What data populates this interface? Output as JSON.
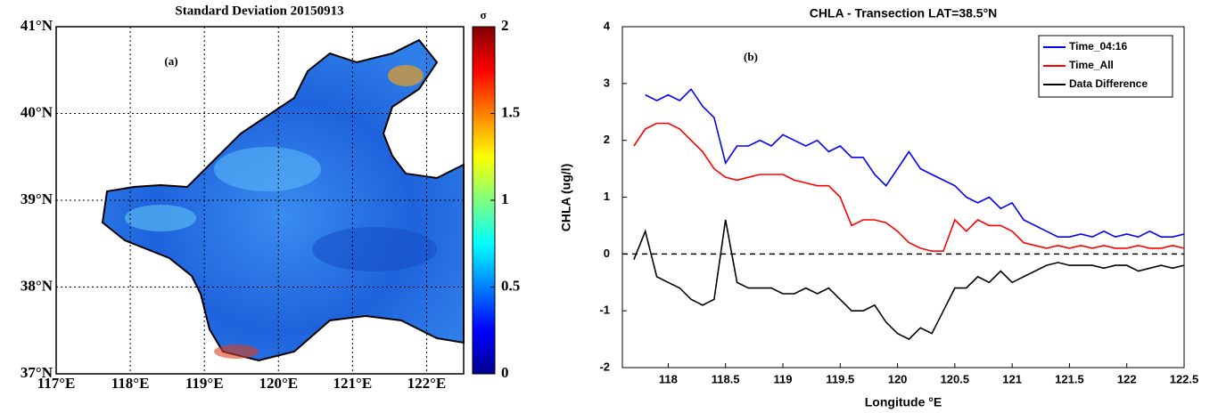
{
  "chart_data": [
    {
      "type": "map",
      "title": "Standard Deviation 20150913",
      "annotation": "(a)",
      "xlim": [
        117,
        122.5
      ],
      "ylim": [
        37,
        41
      ],
      "xticks": [
        {
          "value": 117,
          "label": "117°E"
        },
        {
          "value": 118,
          "label": "118°E"
        },
        {
          "value": 119,
          "label": "119°E"
        },
        {
          "value": 120,
          "label": "120°E"
        },
        {
          "value": 121,
          "label": "121°E"
        },
        {
          "value": 122,
          "label": "122°E"
        }
      ],
      "yticks": [
        {
          "value": 37,
          "label": "37°N"
        },
        {
          "value": 38,
          "label": "38°N"
        },
        {
          "value": 39,
          "label": "39°N"
        },
        {
          "value": 40,
          "label": "40°N"
        },
        {
          "value": 41,
          "label": "41°N"
        }
      ],
      "grid": true,
      "colorbar_label": "σ",
      "clim": [
        0,
        2
      ],
      "cticks": [
        0,
        0.5,
        1,
        1.5,
        2
      ]
    },
    {
      "type": "line",
      "title": "CHLA - Transection LAT=38.5°N",
      "annotation": "(b)",
      "x_label": "Longitude °E",
      "y_label": "CHLA (ug/l)",
      "x": [
        117.7,
        117.8,
        117.9,
        118.0,
        118.1,
        118.2,
        118.3,
        118.4,
        118.5,
        118.6,
        118.7,
        118.8,
        118.9,
        119.0,
        119.1,
        119.2,
        119.3,
        119.4,
        119.5,
        119.6,
        119.7,
        119.8,
        119.9,
        120.0,
        120.1,
        120.2,
        120.3,
        120.4,
        120.5,
        120.6,
        120.7,
        120.8,
        120.9,
        121.0,
        121.1,
        121.2,
        121.3,
        121.4,
        121.5,
        121.6,
        121.7,
        121.8,
        121.9,
        122.0,
        122.1,
        122.2,
        122.3,
        122.4,
        122.5
      ],
      "series": [
        {
          "name": "Time_04:16",
          "color": "#0000ff",
          "values": [
            null,
            2.8,
            2.7,
            2.8,
            2.7,
            2.9,
            2.6,
            2.4,
            1.6,
            1.9,
            1.9,
            2.0,
            1.9,
            2.1,
            2.0,
            1.9,
            2.0,
            1.8,
            1.9,
            1.7,
            1.7,
            1.4,
            1.2,
            1.5,
            1.8,
            1.5,
            1.4,
            1.3,
            1.2,
            1.0,
            0.9,
            1.0,
            0.8,
            0.9,
            0.6,
            0.5,
            0.4,
            0.3,
            0.3,
            0.35,
            0.3,
            0.4,
            0.3,
            0.35,
            0.3,
            0.4,
            0.3,
            0.3,
            0.35
          ]
        },
        {
          "name": "Time_All",
          "color": "#ff0000",
          "values": [
            1.9,
            2.2,
            2.3,
            2.3,
            2.2,
            2.0,
            1.8,
            1.5,
            1.35,
            1.3,
            1.35,
            1.4,
            1.4,
            1.4,
            1.3,
            1.25,
            1.2,
            1.2,
            1.0,
            0.5,
            0.6,
            0.6,
            0.55,
            0.4,
            0.2,
            0.1,
            0.05,
            0.05,
            0.6,
            0.4,
            0.6,
            0.5,
            0.5,
            0.4,
            0.2,
            0.15,
            0.1,
            0.15,
            0.1,
            0.15,
            0.1,
            0.15,
            0.1,
            0.1,
            0.15,
            0.1,
            0.1,
            0.15,
            0.1
          ]
        },
        {
          "name": "Data Difference",
          "color": "#000000",
          "values": [
            -0.1,
            0.4,
            -0.4,
            -0.5,
            -0.6,
            -0.8,
            -0.9,
            -0.8,
            0.6,
            -0.5,
            -0.6,
            -0.6,
            -0.6,
            -0.7,
            -0.7,
            -0.6,
            -0.7,
            -0.6,
            -0.8,
            -1.0,
            -1.0,
            -0.9,
            -1.2,
            -1.4,
            -1.5,
            -1.3,
            -1.4,
            -1.0,
            -0.6,
            -0.6,
            -0.4,
            -0.5,
            -0.3,
            -0.5,
            -0.4,
            -0.3,
            -0.2,
            -0.15,
            -0.2,
            -0.2,
            -0.2,
            -0.25,
            -0.2,
            -0.2,
            -0.3,
            -0.25,
            -0.2,
            -0.25,
            -0.2
          ]
        }
      ],
      "xlim": [
        117.6,
        122.5
      ],
      "ylim": [
        -2,
        4
      ],
      "xticks": [
        118,
        118.5,
        119,
        119.5,
        120,
        120.5,
        121,
        121.5,
        122,
        122.5
      ],
      "yticks": [
        -2,
        -1,
        0,
        1,
        2,
        3,
        4
      ],
      "reference_line": 0,
      "legend": "top-right"
    }
  ]
}
